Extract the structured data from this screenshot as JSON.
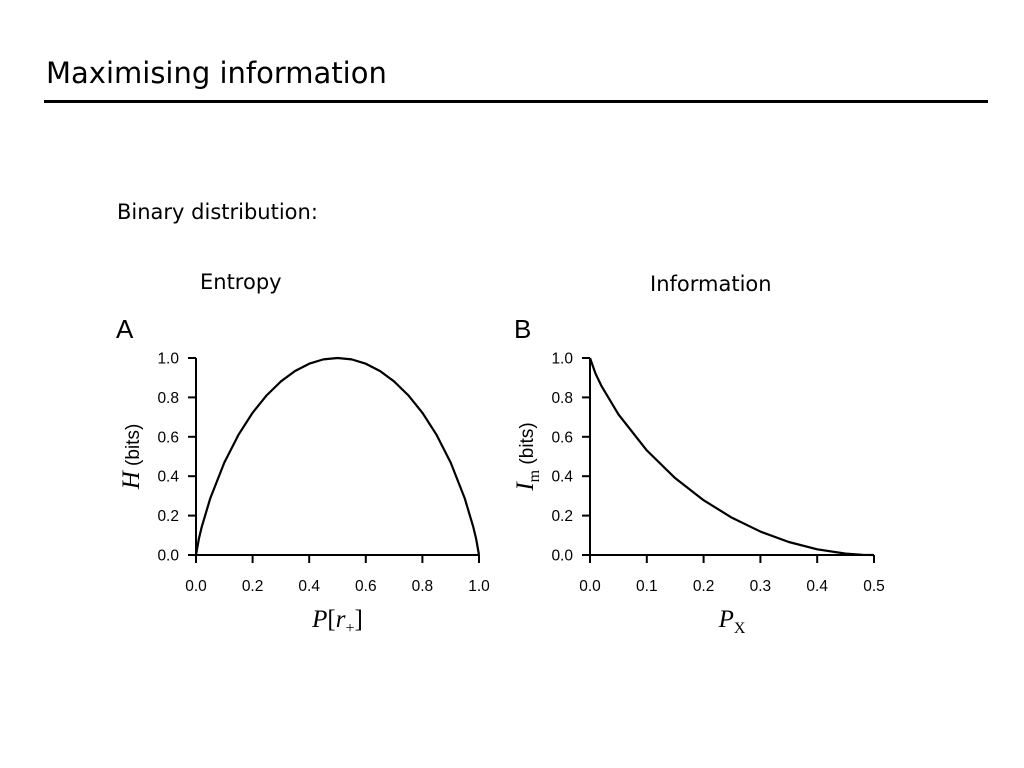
{
  "slide": {
    "title": "Maximising information",
    "subtitle": "Binary distribution:"
  },
  "chart_data": [
    {
      "type": "line",
      "panel_letter": "A",
      "title": "Entropy",
      "ylabel_symbol": "H",
      "ylabel_unit": "(bits)",
      "xlabel_symbol": "P",
      "xlabel_arg": "r",
      "xlabel_arg_sub": "+",
      "xlim": [
        0,
        1
      ],
      "ylim": [
        0,
        1
      ],
      "xticks": [
        "0.0",
        "0.2",
        "0.4",
        "0.6",
        "0.8",
        "1.0"
      ],
      "yticks": [
        "0.0",
        "0.2",
        "0.4",
        "0.6",
        "0.8",
        "1.0"
      ],
      "grid": false,
      "series": [
        {
          "x": [
            0.0,
            0.01,
            0.02,
            0.05,
            0.1,
            0.15,
            0.2,
            0.25,
            0.3,
            0.35,
            0.4,
            0.45,
            0.5,
            0.55,
            0.6,
            0.65,
            0.7,
            0.75,
            0.8,
            0.85,
            0.9,
            0.95,
            0.98,
            0.99,
            1.0
          ],
          "y": [
            0.0,
            0.081,
            0.141,
            0.286,
            0.469,
            0.61,
            0.722,
            0.811,
            0.881,
            0.934,
            0.971,
            0.993,
            1.0,
            0.993,
            0.971,
            0.934,
            0.881,
            0.811,
            0.722,
            0.61,
            0.469,
            0.286,
            0.141,
            0.081,
            0.0
          ]
        }
      ]
    },
    {
      "type": "line",
      "panel_letter": "B",
      "title": "Information",
      "ylabel_symbol": "I",
      "ylabel_sub": "m",
      "ylabel_unit": "(bits)",
      "xlabel_symbol": "P",
      "xlabel_sub": "X",
      "xlim": [
        0,
        0.5
      ],
      "ylim": [
        0,
        1
      ],
      "xticks": [
        "0.0",
        "0.1",
        "0.2",
        "0.3",
        "0.4",
        "0.5"
      ],
      "yticks": [
        "0.0",
        "0.2",
        "0.4",
        "0.6",
        "0.8",
        "1.0"
      ],
      "grid": false,
      "series": [
        {
          "x": [
            0.0,
            0.01,
            0.02,
            0.05,
            0.1,
            0.15,
            0.2,
            0.25,
            0.3,
            0.35,
            0.4,
            0.45,
            0.48,
            0.5
          ],
          "y": [
            1.0,
            0.919,
            0.859,
            0.714,
            0.531,
            0.39,
            0.278,
            0.189,
            0.119,
            0.066,
            0.029,
            0.007,
            0.001,
            0.0
          ]
        }
      ]
    }
  ]
}
